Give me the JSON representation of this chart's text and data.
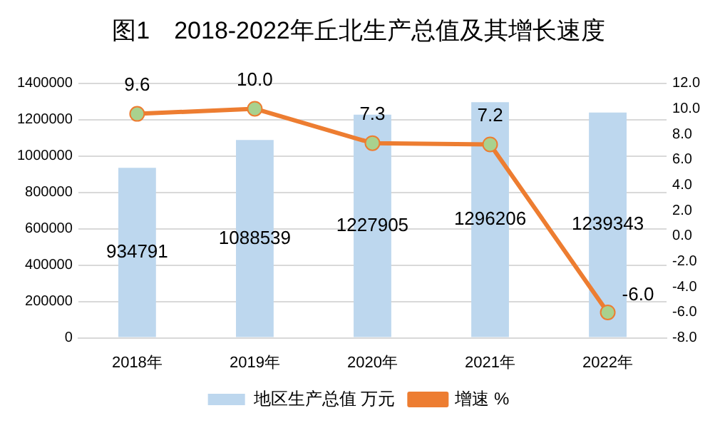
{
  "chart_data": {
    "type": "bar",
    "title": "图1　2018-2022年丘北生产总值及其增长速度",
    "categories": [
      "2018年",
      "2019年",
      "2020年",
      "2021年",
      "2022年"
    ],
    "series": [
      {
        "name": "地区生产总值 万元",
        "color": "#bdd7ee",
        "values": [
          934791,
          1088539,
          1227905,
          1296206,
          1239343
        ]
      },
      {
        "name": "增速 %",
        "type": "line",
        "axis": "y2",
        "color": "#ed7d31",
        "values": [
          9.6,
          10.0,
          7.3,
          7.2,
          -6.0
        ],
        "value_labels": [
          "9.6",
          "10.0",
          "7.3",
          "7.2",
          "-6.0"
        ]
      }
    ],
    "ylim": [
      0,
      1400000
    ],
    "yticks": [
      0,
      200000,
      400000,
      600000,
      800000,
      1000000,
      1200000,
      1400000
    ],
    "y2lim": [
      -8,
      12
    ],
    "y2ticks": [
      {
        "value": -8,
        "label": "-8.0"
      },
      {
        "value": -6,
        "label": "-6.0"
      },
      {
        "value": -4,
        "label": "-4.0"
      },
      {
        "value": -2,
        "label": "-2.0"
      },
      {
        "value": 0,
        "label": "0.0"
      },
      {
        "value": 2,
        "label": "2.0"
      },
      {
        "value": 4,
        "label": "4.0"
      },
      {
        "value": 6,
        "label": "6.0"
      },
      {
        "value": 8,
        "label": "8.0"
      },
      {
        "value": 10,
        "label": "10.0"
      },
      {
        "value": 12,
        "label": "12.0"
      }
    ],
    "grid": "y",
    "legend": "bottom",
    "marker": "circle",
    "data_labels": true
  }
}
